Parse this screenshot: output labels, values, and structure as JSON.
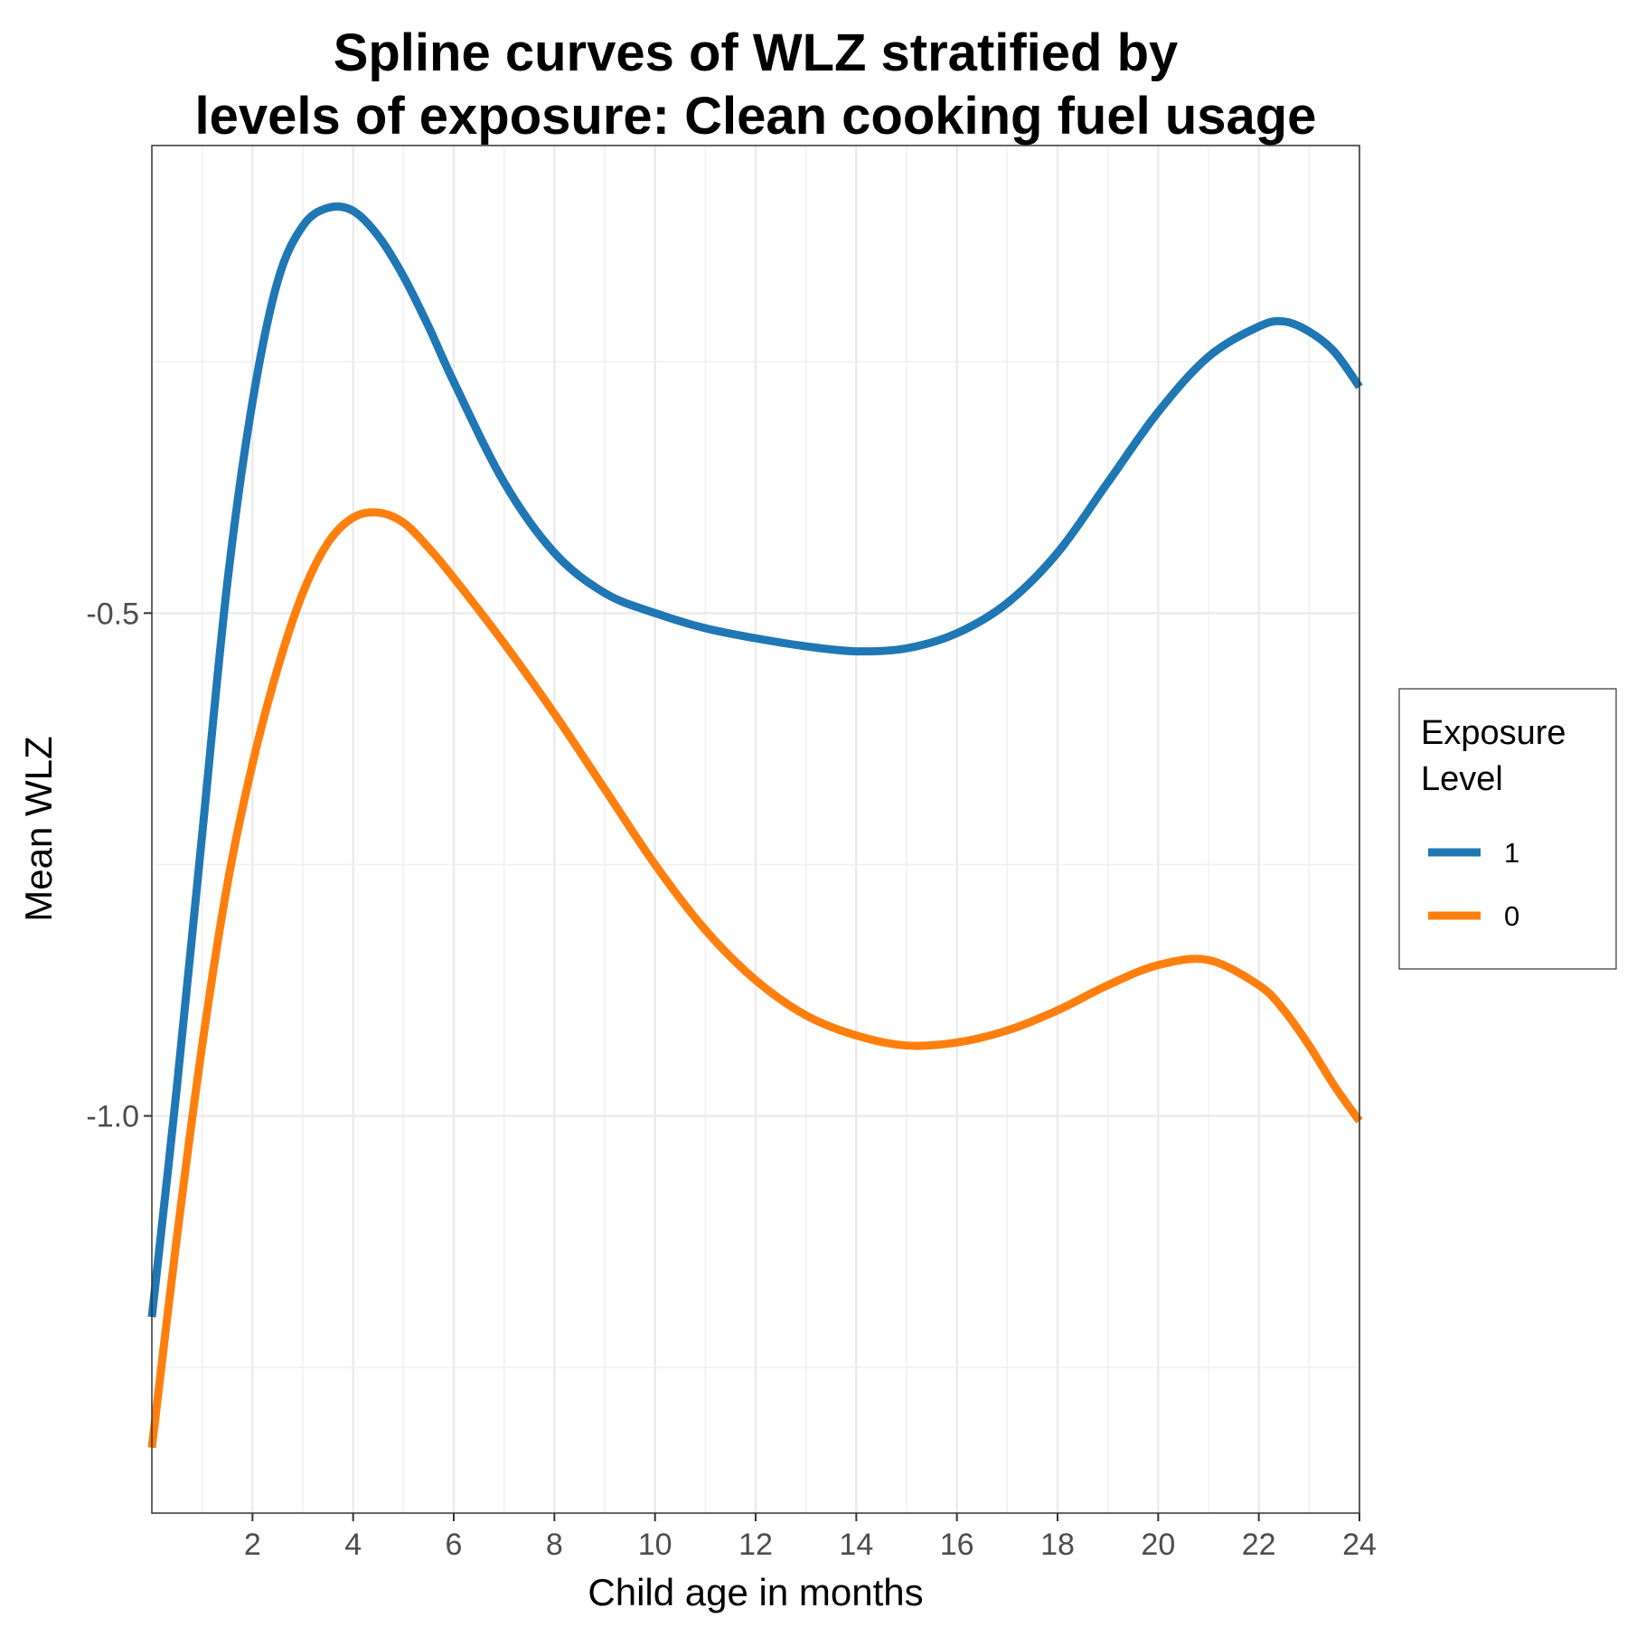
{
  "chart_data": {
    "type": "line",
    "title_lines": [
      "Spline curves of WLZ stratified by",
      "levels of exposure: Clean cooking fuel usage"
    ],
    "xlabel": "Child age in months",
    "ylabel": "Mean WLZ",
    "xlim": [
      0,
      24
    ],
    "ylim": [
      -1.395,
      -0.035
    ],
    "x_ticks": [
      2,
      4,
      6,
      8,
      10,
      12,
      14,
      16,
      18,
      20,
      22,
      24
    ],
    "x_tick_labels": [
      "2",
      "4",
      "6",
      "8",
      "10",
      "12",
      "14",
      "16",
      "18",
      "20",
      "22",
      "24"
    ],
    "y_ticks": [
      -0.5,
      -1.0
    ],
    "y_tick_labels": [
      "-0.5",
      "-1.0"
    ],
    "grid": true,
    "legend": {
      "title_lines": [
        "Exposure",
        "Level"
      ],
      "position": "right"
    },
    "series": [
      {
        "name": "1",
        "color": "#1f77b4",
        "x": [
          0,
          0.5,
          1,
          1.5,
          2,
          2.5,
          3,
          3.5,
          4,
          4.5,
          5,
          5.5,
          6,
          7,
          8,
          9,
          10,
          11,
          12,
          13,
          14,
          15,
          16,
          17,
          18,
          19,
          20,
          21,
          22,
          22.5,
          23,
          23.5,
          24
        ],
        "y": [
          -1.2,
          -0.97,
          -0.72,
          -0.47,
          -0.29,
          -0.17,
          -0.115,
          -0.097,
          -0.1,
          -0.125,
          -0.165,
          -0.215,
          -0.27,
          -0.37,
          -0.44,
          -0.48,
          -0.5,
          -0.515,
          -0.525,
          -0.533,
          -0.538,
          -0.535,
          -0.52,
          -0.49,
          -0.44,
          -0.37,
          -0.3,
          -0.245,
          -0.215,
          -0.21,
          -0.22,
          -0.24,
          -0.275
        ]
      },
      {
        "name": "0",
        "color": "#ff7f0e",
        "x": [
          0,
          0.5,
          1,
          1.5,
          2,
          2.5,
          3,
          3.5,
          4,
          4.5,
          5,
          5.5,
          6,
          7,
          8,
          9,
          10,
          11,
          12,
          13,
          14,
          15,
          16,
          17,
          18,
          19,
          20,
          21,
          22,
          22.5,
          23,
          23.5,
          24
        ],
        "y": [
          -1.33,
          -1.12,
          -0.93,
          -0.77,
          -0.65,
          -0.555,
          -0.48,
          -0.43,
          -0.405,
          -0.4,
          -0.41,
          -0.435,
          -0.465,
          -0.53,
          -0.6,
          -0.675,
          -0.75,
          -0.815,
          -0.865,
          -0.9,
          -0.92,
          -0.93,
          -0.927,
          -0.915,
          -0.895,
          -0.87,
          -0.85,
          -0.845,
          -0.87,
          -0.895,
          -0.93,
          -0.97,
          -1.005
        ]
      }
    ]
  }
}
